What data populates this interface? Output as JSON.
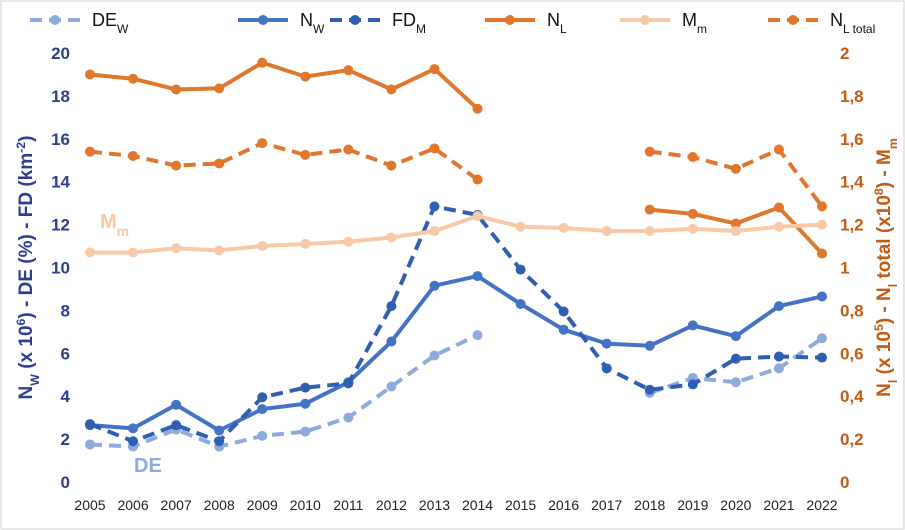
{
  "chart_data": {
    "type": "line",
    "categories": [
      "2005",
      "2006",
      "2007",
      "2008",
      "2009",
      "2010",
      "2011",
      "2012",
      "2013",
      "2014",
      "2015",
      "2016",
      "2017",
      "2018",
      "2019",
      "2020",
      "2021",
      "2022"
    ],
    "series": [
      {
        "name": "DE",
        "name_sub": "W",
        "color": "#8faadc",
        "dash": true,
        "axis": "y",
        "values": [
          1.75,
          1.65,
          2.45,
          1.65,
          2.15,
          2.35,
          3.0,
          4.45,
          5.9,
          6.85,
          null,
          null,
          null,
          4.15,
          4.85,
          4.65,
          5.3,
          6.7
        ]
      },
      {
        "name": "N",
        "name_sub": "W",
        "color": "#4472c4",
        "dash": false,
        "axis": "y",
        "values": [
          2.65,
          2.5,
          3.6,
          2.4,
          3.4,
          3.65,
          4.65,
          6.55,
          9.15,
          9.6,
          8.3,
          7.1,
          6.45,
          6.35,
          7.3,
          6.8,
          8.2,
          8.65
        ]
      },
      {
        "name": "FD",
        "name_sub": "M",
        "color": "#2f5fb3",
        "dash": true,
        "axis": "y",
        "values": [
          2.7,
          1.9,
          2.65,
          1.9,
          3.95,
          4.4,
          4.6,
          8.2,
          12.85,
          12.45,
          9.9,
          7.95,
          5.3,
          4.3,
          4.55,
          5.75,
          5.85,
          5.8
        ]
      },
      {
        "name": "N",
        "name_sub": "L",
        "color": "#e0772c",
        "dash": false,
        "axis": "y2",
        "values": [
          1.9,
          1.88,
          1.83,
          1.835,
          1.955,
          1.89,
          1.92,
          1.83,
          1.925,
          1.74,
          null,
          null,
          null,
          1.27,
          1.25,
          1.205,
          1.28,
          1.065
        ]
      },
      {
        "name": "M",
        "name_sub": "m",
        "color": "#f7c9a8",
        "dash": false,
        "axis": "y2",
        "values": [
          1.07,
          1.07,
          1.09,
          1.08,
          1.1,
          1.11,
          1.12,
          1.14,
          1.17,
          1.24,
          1.19,
          1.185,
          1.17,
          1.17,
          1.18,
          1.17,
          1.19,
          1.2
        ]
      },
      {
        "name": "N",
        "name_sub": "L total",
        "color": "#e0772c",
        "dash": true,
        "axis": "y2",
        "values": [
          1.54,
          1.52,
          1.475,
          1.485,
          1.58,
          1.525,
          1.55,
          1.475,
          1.555,
          1.41,
          null,
          null,
          null,
          1.54,
          1.515,
          1.46,
          1.55,
          1.285
        ]
      }
    ],
    "ylim": [
      0,
      20
    ],
    "yticks": [
      0,
      2,
      4,
      6,
      8,
      10,
      12,
      14,
      16,
      18,
      20
    ],
    "y2lim": [
      0,
      2
    ],
    "y2ticks": [
      0,
      {
        "value": 0.2,
        "label": "0,2"
      },
      {
        "value": 0.4,
        "label": "0,4"
      },
      {
        "value": 0.6,
        "label": "0,6"
      },
      {
        "value": 0.8,
        "label": "0,8"
      },
      1,
      {
        "value": 1.2,
        "label": "1,2"
      },
      {
        "value": 1.4,
        "label": "1,4"
      },
      {
        "value": 1.6,
        "label": "1,6"
      },
      {
        "value": 1.8,
        "label": "1,8"
      },
      2
    ],
    "y_label": [
      {
        "t": "N"
      },
      {
        "t": "W",
        "s": "sub"
      },
      {
        "t": " (x 10"
      },
      {
        "t": "6",
        "s": "sup"
      },
      {
        "t": ") - DE (%) - FD (km"
      },
      {
        "t": "-2",
        "s": "sup"
      },
      {
        "t": ")"
      }
    ],
    "y2_label": [
      {
        "t": "N"
      },
      {
        "t": "l",
        "s": "sub"
      },
      {
        "t": " (x 10"
      },
      {
        "t": "5",
        "s": "sup"
      },
      {
        "t": ") - N"
      },
      {
        "t": "l",
        "s": "sub"
      },
      {
        "t": " total (x10"
      },
      {
        "t": "8",
        "s": "sup"
      },
      {
        "t": ") - M"
      },
      {
        "t": "m",
        "s": "sub"
      }
    ],
    "annotations": [
      {
        "t": "M",
        "sub": "m",
        "color": "#f7c9a8"
      },
      {
        "t": "DE",
        "color": "#8faadc"
      }
    ],
    "grid": false,
    "legend": "top"
  }
}
